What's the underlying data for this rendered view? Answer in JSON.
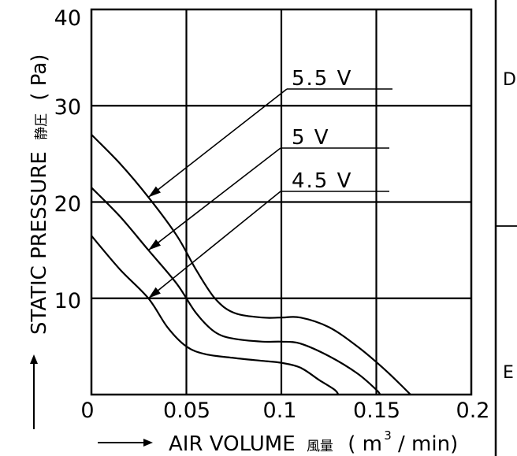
{
  "chart_data": {
    "type": "line",
    "xlabel_text": "AIR VOLUME",
    "xlabel_jp": "風量",
    "xlabel_unit_prefix": "( m",
    "xlabel_unit_sup": "3",
    "xlabel_unit_suffix": "/ min)",
    "ylabel_text": "STATIC  PRESSURE",
    "ylabel_jp": "静圧",
    "ylabel_unit": "( Pa)",
    "xlim": [
      0,
      0.2
    ],
    "ylim": [
      0,
      40
    ],
    "x_ticks": [
      "0",
      "0.05",
      "0.1",
      "0.15",
      "0.2"
    ],
    "y_ticks": [
      "10",
      "20",
      "30",
      "40"
    ],
    "grid": true,
    "series": [
      {
        "name": "5.5  V",
        "points": [
          [
            0,
            27
          ],
          [
            0.015,
            24
          ],
          [
            0.03,
            20.5
          ],
          [
            0.045,
            16.5
          ],
          [
            0.055,
            13
          ],
          [
            0.065,
            10
          ],
          [
            0.075,
            8.5
          ],
          [
            0.09,
            8
          ],
          [
            0.1,
            8
          ],
          [
            0.11,
            8
          ],
          [
            0.125,
            7
          ],
          [
            0.14,
            5
          ],
          [
            0.155,
            2.5
          ],
          [
            0.168,
            0
          ]
        ]
      },
      {
        "name": "5  V",
        "points": [
          [
            0,
            21.5
          ],
          [
            0.015,
            18.5
          ],
          [
            0.03,
            15
          ],
          [
            0.045,
            11.5
          ],
          [
            0.055,
            8.5
          ],
          [
            0.065,
            6.5
          ],
          [
            0.075,
            5.8
          ],
          [
            0.09,
            5.5
          ],
          [
            0.1,
            5.5
          ],
          [
            0.11,
            5.3
          ],
          [
            0.125,
            4
          ],
          [
            0.14,
            2.2
          ],
          [
            0.15,
            0.5
          ],
          [
            0.152,
            0
          ]
        ]
      },
      {
        "name": "4.5  V",
        "points": [
          [
            0,
            16.5
          ],
          [
            0.015,
            13
          ],
          [
            0.03,
            10
          ],
          [
            0.04,
            7
          ],
          [
            0.05,
            5
          ],
          [
            0.06,
            4.2
          ],
          [
            0.075,
            3.8
          ],
          [
            0.09,
            3.5
          ],
          [
            0.1,
            3.3
          ],
          [
            0.11,
            2.8
          ],
          [
            0.12,
            1.5
          ],
          [
            0.128,
            0.5
          ],
          [
            0.13,
            0
          ]
        ]
      }
    ],
    "annotations": [
      {
        "label": "5.5  V",
        "target_x": 0.03,
        "target_y": 20.5
      },
      {
        "label": "5  V",
        "target_x": 0.03,
        "target_y": 15
      },
      {
        "label": "4.5  V",
        "target_x": 0.03,
        "target_y": 10
      }
    ]
  },
  "side_labels": [
    "D",
    "E"
  ],
  "colors": {
    "line": "#000000",
    "background": "#ffffff"
  }
}
